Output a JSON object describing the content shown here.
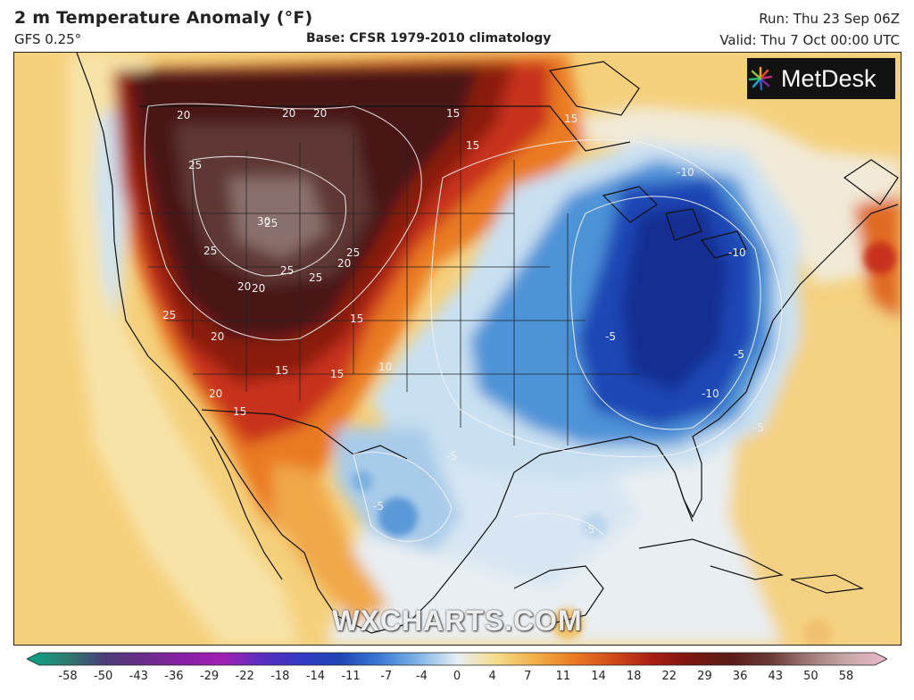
{
  "header": {
    "title": "2 m Temperature Anomaly (°F)",
    "model": "GFS 0.25°",
    "base": "Base: CFSR 1979-2010 climatology",
    "run": "Run: Thu 23 Sep 06Z",
    "valid": "Valid: Thu 7 Oct 00:00 UTC"
  },
  "logo": {
    "text": "MetDesk",
    "icon": "metdesk-starburst-icon"
  },
  "watermark": "WXCHARTS.COM",
  "map": {
    "contour_labels_warm": [
      "20",
      "20",
      "20",
      "15",
      "15",
      "15",
      "25",
      "30",
      "25",
      "25",
      "20",
      "25",
      "25",
      "25",
      "20",
      "20",
      "25",
      "20",
      "15",
      "15",
      "15",
      "10",
      "20",
      "15"
    ],
    "contour_labels_cold": [
      "-10",
      "-10",
      "-10",
      "-5",
      "-5",
      "-5",
      "-5",
      "-5",
      "-5"
    ],
    "colors": {
      "extreme_warm": "#3a1512",
      "very_warm": "#5a1c17",
      "warm_dark": "#8b1a10",
      "warm": "#c8321a",
      "orange": "#ea7a22",
      "light_orange": "#f3aa43",
      "yellow": "#f6d27e",
      "near_zero": "#f2ecdc",
      "light_blue": "#c9e0f1",
      "blue": "#4e93d8",
      "deep_blue": "#1e46b5",
      "navy": "#142f92"
    }
  },
  "legend": {
    "ticks": [
      "-58",
      "-50",
      "-43",
      "-36",
      "-29",
      "-22",
      "-18",
      "-14",
      "-11",
      "-7",
      "-4",
      "0",
      "4",
      "7",
      "11",
      "14",
      "18",
      "22",
      "29",
      "36",
      "43",
      "50",
      "58"
    ],
    "stops": [
      "#0aa58a",
      "#2e7d6e",
      "#4c3d7a",
      "#6b2c8a",
      "#8a1fa6",
      "#a020b4",
      "#5a2fc0",
      "#3438c4",
      "#1e46b5",
      "#3a78d4",
      "#7fb3e6",
      "#e7eef5",
      "#f6dc8a",
      "#f2b048",
      "#ea7a22",
      "#d04a1a",
      "#a81e12",
      "#7a1710",
      "#5a1c17",
      "#6b3a36",
      "#a07a78",
      "#c9a8a8",
      "#e9b8cc"
    ]
  }
}
